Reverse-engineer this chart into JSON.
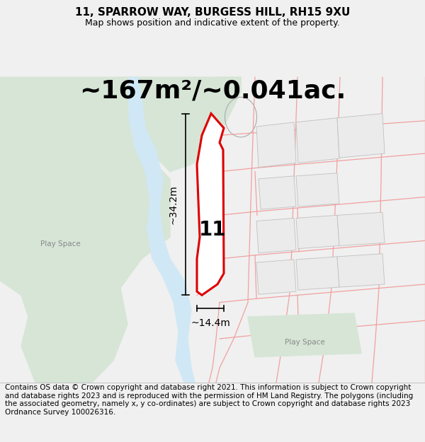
{
  "title": "11, SPARROW WAY, BURGESS HILL, RH15 9XU",
  "subtitle": "Map shows position and indicative extent of the property.",
  "area_text": "~167m²/~0.041ac.",
  "dim_height": "~34.2m",
  "dim_width": "~14.4m",
  "label_number": "11",
  "footer": "Contains OS data © Crown copyright and database right 2021. This information is subject to Crown copyright and database rights 2023 and is reproduced with the permission of HM Land Registry. The polygons (including the associated geometry, namely x, y co-ordinates) are subject to Crown copyright and database rights 2023 Ordnance Survey 100026316.",
  "bg_color": "#f0f0f0",
  "map_bg": "#f5f5f5",
  "green_color": "#d6e5d6",
  "blue_color": "#d0e8f5",
  "red_plot_color": "#dd0000",
  "red_lines_color": "#f0a0a0",
  "gray_building_fill": "#e0e0e0",
  "gray_building_edge": "#bbbbbb",
  "title_fontsize": 11,
  "subtitle_fontsize": 9,
  "area_fontsize": 26,
  "label_fontsize": 20,
  "footer_fontsize": 7.5,
  "dim_fontsize": 10
}
